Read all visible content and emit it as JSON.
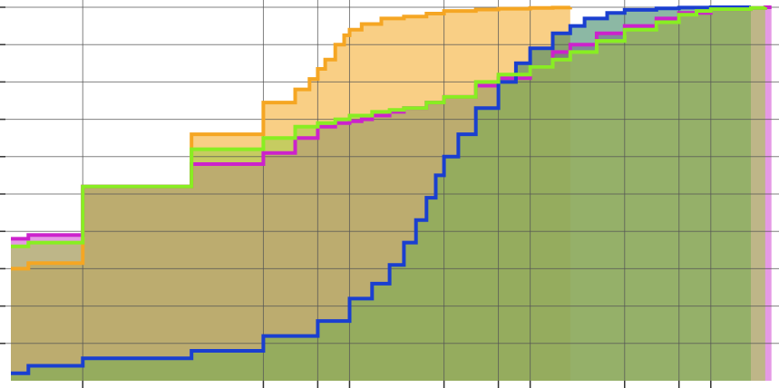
{
  "chart_data": {
    "type": "area",
    "title": "",
    "xlabel": "",
    "ylabel": "",
    "x_scale": "log",
    "xlim": [
      0.4,
      6600
    ],
    "ylim": [
      0,
      1
    ],
    "grid": true,
    "x_gridlines": [
      1,
      10,
      20,
      30,
      100,
      200,
      300,
      1000,
      2000,
      3000
    ],
    "y_gridlines": [
      0.1,
      0.2,
      0.3,
      0.4,
      0.5,
      0.6,
      0.7,
      0.8,
      0.9,
      1.0
    ],
    "colors": {
      "orange": "#f5a623",
      "magenta": "#cc22cc",
      "blue": "#1a3fd0",
      "green": "#88ee22",
      "grid": "#555555"
    },
    "series": [
      {
        "color_key": "orange",
        "fill": "#f6b13a",
        "fill_opacity": 0.62,
        "step": true,
        "x": [
          0.4,
          0.5,
          1,
          4,
          10,
          15,
          18,
          20,
          22,
          25,
          28,
          30,
          35,
          45,
          60,
          80,
          100,
          150,
          200,
          300,
          400,
          500
        ],
        "y": [
          0.3,
          0.315,
          0.52,
          0.66,
          0.745,
          0.78,
          0.808,
          0.835,
          0.86,
          0.9,
          0.925,
          0.94,
          0.955,
          0.97,
          0.975,
          0.983,
          0.99,
          0.994,
          0.996,
          0.998,
          0.999,
          1.0
        ]
      },
      {
        "color_key": "magenta",
        "fill": "#cc33cc",
        "fill_opacity": 0.5,
        "step": true,
        "x": [
          0.4,
          0.5,
          1,
          4,
          10,
          15,
          20,
          25,
          30,
          35,
          40,
          50,
          60,
          80,
          100,
          150,
          200,
          300,
          400,
          500,
          700,
          1000,
          1500,
          2000,
          3000,
          5000,
          6000,
          6500
        ],
        "y": [
          0.38,
          0.39,
          0.52,
          0.58,
          0.61,
          0.65,
          0.68,
          0.69,
          0.695,
          0.7,
          0.71,
          0.72,
          0.73,
          0.745,
          0.76,
          0.79,
          0.81,
          0.84,
          0.88,
          0.9,
          0.93,
          0.95,
          0.97,
          0.985,
          0.995,
          0.998,
          1.0,
          1.0
        ]
      },
      {
        "color_key": "blue",
        "fill": "#2e7d5a",
        "fill_opacity": 0.55,
        "step": true,
        "x": [
          0.4,
          0.5,
          1,
          4,
          10,
          20,
          30,
          40,
          50,
          60,
          70,
          80,
          90,
          100,
          120,
          150,
          200,
          250,
          300,
          400,
          500,
          600,
          800,
          1000,
          1500,
          2000,
          3000,
          5000
        ],
        "y": [
          0.02,
          0.04,
          0.06,
          0.08,
          0.12,
          0.16,
          0.22,
          0.26,
          0.31,
          0.37,
          0.43,
          0.49,
          0.55,
          0.6,
          0.66,
          0.73,
          0.8,
          0.85,
          0.89,
          0.93,
          0.95,
          0.97,
          0.985,
          0.993,
          0.997,
          0.999,
          1.0,
          1.0
        ]
      },
      {
        "color_key": "green",
        "fill": "#a4c94a",
        "fill_opacity": 0.6,
        "step": true,
        "x": [
          0.4,
          0.5,
          1,
          4,
          10,
          15,
          20,
          25,
          30,
          40,
          50,
          60,
          80,
          100,
          150,
          200,
          300,
          400,
          500,
          700,
          1000,
          1500,
          2000,
          2500,
          3000,
          5000,
          6000
        ],
        "y": [
          0.36,
          0.37,
          0.52,
          0.62,
          0.65,
          0.68,
          0.69,
          0.7,
          0.71,
          0.72,
          0.725,
          0.73,
          0.745,
          0.76,
          0.8,
          0.82,
          0.84,
          0.86,
          0.88,
          0.91,
          0.94,
          0.96,
          0.98,
          0.99,
          0.995,
          0.998,
          1.0
        ]
      }
    ]
  }
}
